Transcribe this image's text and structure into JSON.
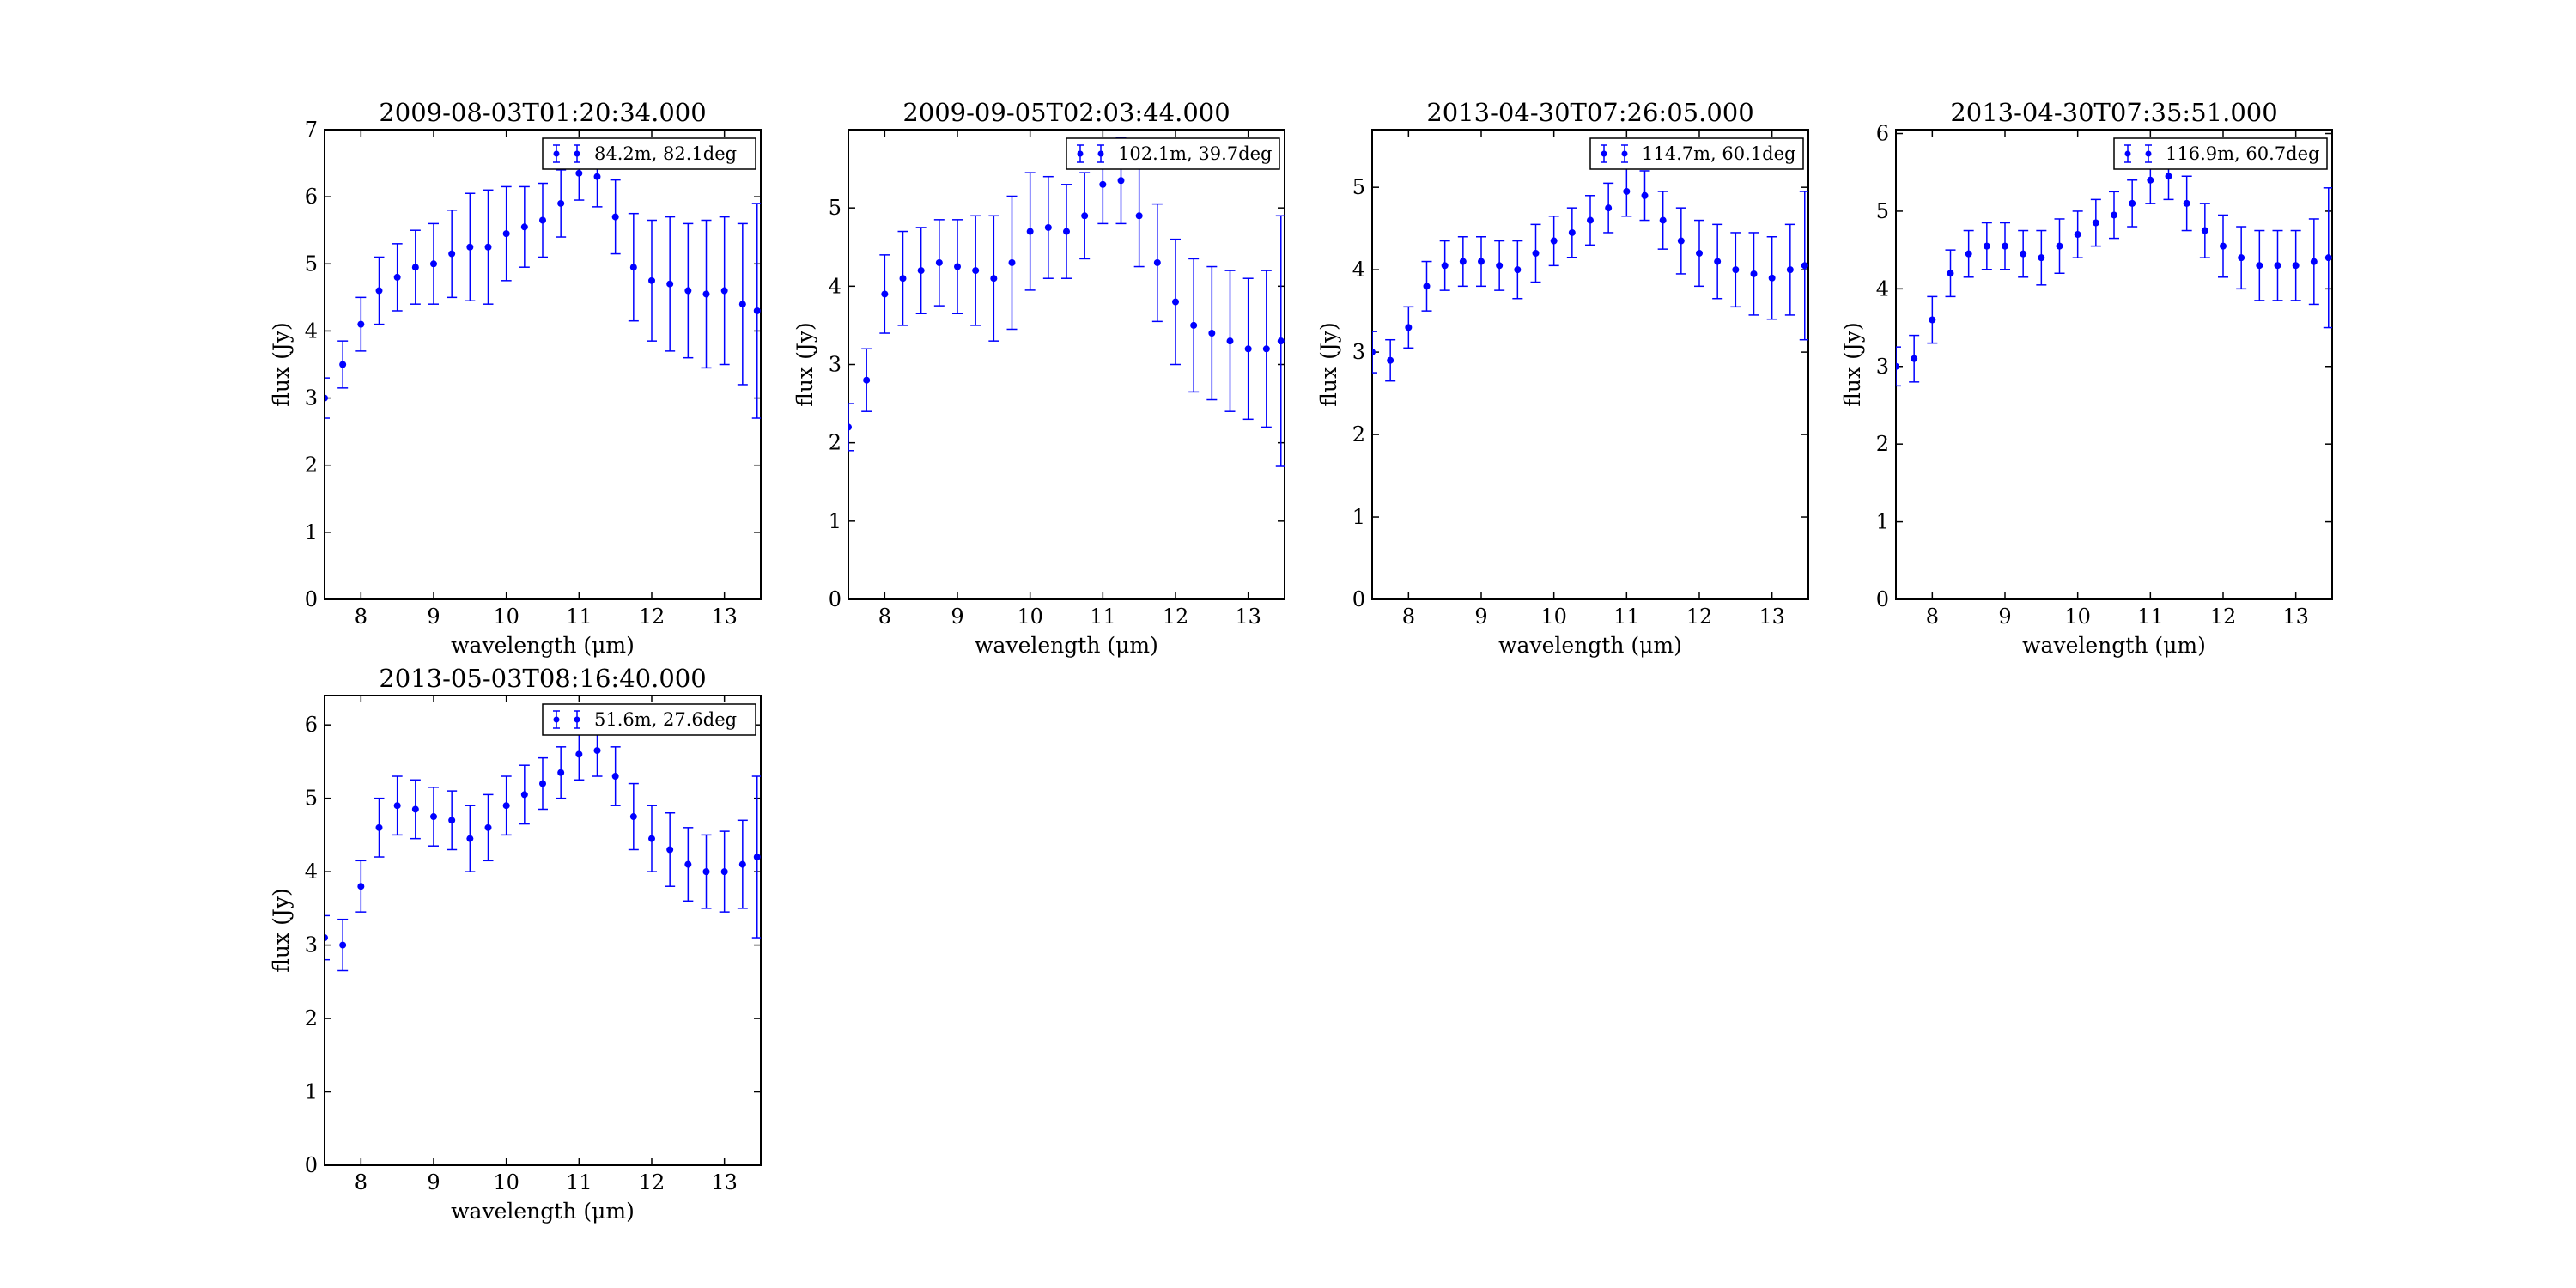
{
  "figure": {
    "background": "#ffffff",
    "series_color": "#0000ff"
  },
  "chart_data": [
    {
      "type": "scatter",
      "title": "2009-08-03T01:20:34.000",
      "xlabel": "wavelength (μm)",
      "ylabel": "flux (Jy)",
      "legend": "84.2m, 82.1deg",
      "legend_position": "top-right",
      "grid": false,
      "xlim": [
        7.5,
        13.5
      ],
      "ylim": [
        0,
        7
      ],
      "xticks": [
        8,
        9,
        10,
        11,
        12,
        13
      ],
      "yticks": [
        0,
        1,
        2,
        3,
        4,
        5,
        6,
        7
      ],
      "x": [
        7.5,
        7.75,
        8.0,
        8.25,
        8.5,
        8.75,
        9.0,
        9.25,
        9.5,
        9.75,
        10.0,
        10.25,
        10.5,
        10.75,
        11.0,
        11.25,
        11.5,
        11.75,
        12.0,
        12.25,
        12.5,
        12.75,
        13.0,
        13.25,
        13.45
      ],
      "y": [
        3.0,
        3.5,
        4.1,
        4.6,
        4.8,
        4.95,
        5.0,
        5.15,
        5.25,
        5.25,
        5.45,
        5.55,
        5.65,
        5.9,
        6.35,
        6.3,
        5.7,
        4.95,
        4.75,
        4.7,
        4.6,
        4.55,
        4.6,
        4.4,
        4.3
      ],
      "yerr": [
        0.3,
        0.35,
        0.4,
        0.5,
        0.5,
        0.55,
        0.6,
        0.65,
        0.8,
        0.85,
        0.7,
        0.6,
        0.55,
        0.5,
        0.4,
        0.45,
        0.55,
        0.8,
        0.9,
        1.0,
        1.0,
        1.1,
        1.1,
        1.2,
        1.6
      ]
    },
    {
      "type": "scatter",
      "title": "2009-09-05T02:03:44.000",
      "xlabel": "wavelength (μm)",
      "ylabel": "flux (Jy)",
      "legend": "102.1m, 39.7deg",
      "legend_position": "top-right",
      "grid": false,
      "xlim": [
        7.5,
        13.5
      ],
      "ylim": [
        0,
        6
      ],
      "xticks": [
        8,
        9,
        10,
        11,
        12,
        13
      ],
      "yticks": [
        0,
        1,
        2,
        3,
        4,
        5
      ],
      "x": [
        7.5,
        7.75,
        8.0,
        8.25,
        8.5,
        8.75,
        9.0,
        9.25,
        9.5,
        9.75,
        10.0,
        10.25,
        10.5,
        10.75,
        11.0,
        11.25,
        11.5,
        11.75,
        12.0,
        12.25,
        12.5,
        12.75,
        13.0,
        13.25,
        13.45
      ],
      "y": [
        2.2,
        2.8,
        3.9,
        4.1,
        4.2,
        4.3,
        4.25,
        4.2,
        4.1,
        4.3,
        4.7,
        4.75,
        4.7,
        4.9,
        5.3,
        5.35,
        4.9,
        4.3,
        3.8,
        3.5,
        3.4,
        3.3,
        3.2,
        3.2,
        3.3
      ],
      "yerr": [
        0.3,
        0.4,
        0.5,
        0.6,
        0.55,
        0.55,
        0.6,
        0.7,
        0.8,
        0.85,
        0.75,
        0.65,
        0.6,
        0.55,
        0.5,
        0.55,
        0.65,
        0.75,
        0.8,
        0.85,
        0.85,
        0.9,
        0.9,
        1.0,
        1.6
      ]
    },
    {
      "type": "scatter",
      "title": "2013-04-30T07:26:05.000",
      "xlabel": "wavelength (μm)",
      "ylabel": "flux (Jy)",
      "legend": "114.7m, 60.1deg",
      "legend_position": "top-right",
      "grid": false,
      "xlim": [
        7.5,
        13.5
      ],
      "ylim": [
        0,
        5.7
      ],
      "xticks": [
        8,
        9,
        10,
        11,
        12,
        13
      ],
      "yticks": [
        0,
        1,
        2,
        3,
        4,
        5
      ],
      "x": [
        7.5,
        7.75,
        8.0,
        8.25,
        8.5,
        8.75,
        9.0,
        9.25,
        9.5,
        9.75,
        10.0,
        10.25,
        10.5,
        10.75,
        11.0,
        11.25,
        11.5,
        11.75,
        12.0,
        12.25,
        12.5,
        12.75,
        13.0,
        13.25,
        13.45
      ],
      "y": [
        3.0,
        2.9,
        3.3,
        3.8,
        4.05,
        4.1,
        4.1,
        4.05,
        4.0,
        4.2,
        4.35,
        4.45,
        4.6,
        4.75,
        4.95,
        4.9,
        4.6,
        4.35,
        4.2,
        4.1,
        4.0,
        3.95,
        3.9,
        4.0,
        4.05
      ],
      "yerr": [
        0.25,
        0.25,
        0.25,
        0.3,
        0.3,
        0.3,
        0.3,
        0.3,
        0.35,
        0.35,
        0.3,
        0.3,
        0.3,
        0.3,
        0.3,
        0.3,
        0.35,
        0.4,
        0.4,
        0.45,
        0.45,
        0.5,
        0.5,
        0.55,
        0.9
      ]
    },
    {
      "type": "scatter",
      "title": "2013-04-30T07:35:51.000",
      "xlabel": "wavelength (μm)",
      "ylabel": "flux (Jy)",
      "legend": "116.9m, 60.7deg",
      "legend_position": "top-right",
      "grid": false,
      "xlim": [
        7.5,
        13.5
      ],
      "ylim": [
        0,
        6.05
      ],
      "xticks": [
        8,
        9,
        10,
        11,
        12,
        13
      ],
      "yticks": [
        0,
        1,
        2,
        3,
        4,
        5,
        6
      ],
      "x": [
        7.5,
        7.75,
        8.0,
        8.25,
        8.5,
        8.75,
        9.0,
        9.25,
        9.5,
        9.75,
        10.0,
        10.25,
        10.5,
        10.75,
        11.0,
        11.25,
        11.5,
        11.75,
        12.0,
        12.25,
        12.5,
        12.75,
        13.0,
        13.25,
        13.45
      ],
      "y": [
        3.0,
        3.1,
        3.6,
        4.2,
        4.45,
        4.55,
        4.55,
        4.45,
        4.4,
        4.55,
        4.7,
        4.85,
        4.95,
        5.1,
        5.4,
        5.45,
        5.1,
        4.75,
        4.55,
        4.4,
        4.3,
        4.3,
        4.3,
        4.35,
        4.4
      ],
      "yerr": [
        0.25,
        0.3,
        0.3,
        0.3,
        0.3,
        0.3,
        0.3,
        0.3,
        0.35,
        0.35,
        0.3,
        0.3,
        0.3,
        0.3,
        0.3,
        0.3,
        0.35,
        0.35,
        0.4,
        0.4,
        0.45,
        0.45,
        0.45,
        0.55,
        0.9
      ]
    },
    {
      "type": "scatter",
      "title": "2013-05-03T08:16:40.000",
      "xlabel": "wavelength (μm)",
      "ylabel": "flux (Jy)",
      "legend": "51.6m, 27.6deg",
      "legend_position": "top-right",
      "grid": false,
      "xlim": [
        7.5,
        13.5
      ],
      "ylim": [
        0,
        6.4
      ],
      "xticks": [
        8,
        9,
        10,
        11,
        12,
        13
      ],
      "yticks": [
        0,
        1,
        2,
        3,
        4,
        5,
        6
      ],
      "x": [
        7.5,
        7.75,
        8.0,
        8.25,
        8.5,
        8.75,
        9.0,
        9.25,
        9.5,
        9.75,
        10.0,
        10.25,
        10.5,
        10.75,
        11.0,
        11.25,
        11.5,
        11.75,
        12.0,
        12.25,
        12.5,
        12.75,
        13.0,
        13.25,
        13.45
      ],
      "y": [
        3.1,
        3.0,
        3.8,
        4.6,
        4.9,
        4.85,
        4.75,
        4.7,
        4.45,
        4.6,
        4.9,
        5.05,
        5.2,
        5.35,
        5.6,
        5.65,
        5.3,
        4.75,
        4.45,
        4.3,
        4.1,
        4.0,
        4.0,
        4.1,
        4.2
      ],
      "yerr": [
        0.3,
        0.35,
        0.35,
        0.4,
        0.4,
        0.4,
        0.4,
        0.4,
        0.45,
        0.45,
        0.4,
        0.4,
        0.35,
        0.35,
        0.35,
        0.35,
        0.4,
        0.45,
        0.45,
        0.5,
        0.5,
        0.5,
        0.55,
        0.6,
        1.1
      ]
    }
  ]
}
